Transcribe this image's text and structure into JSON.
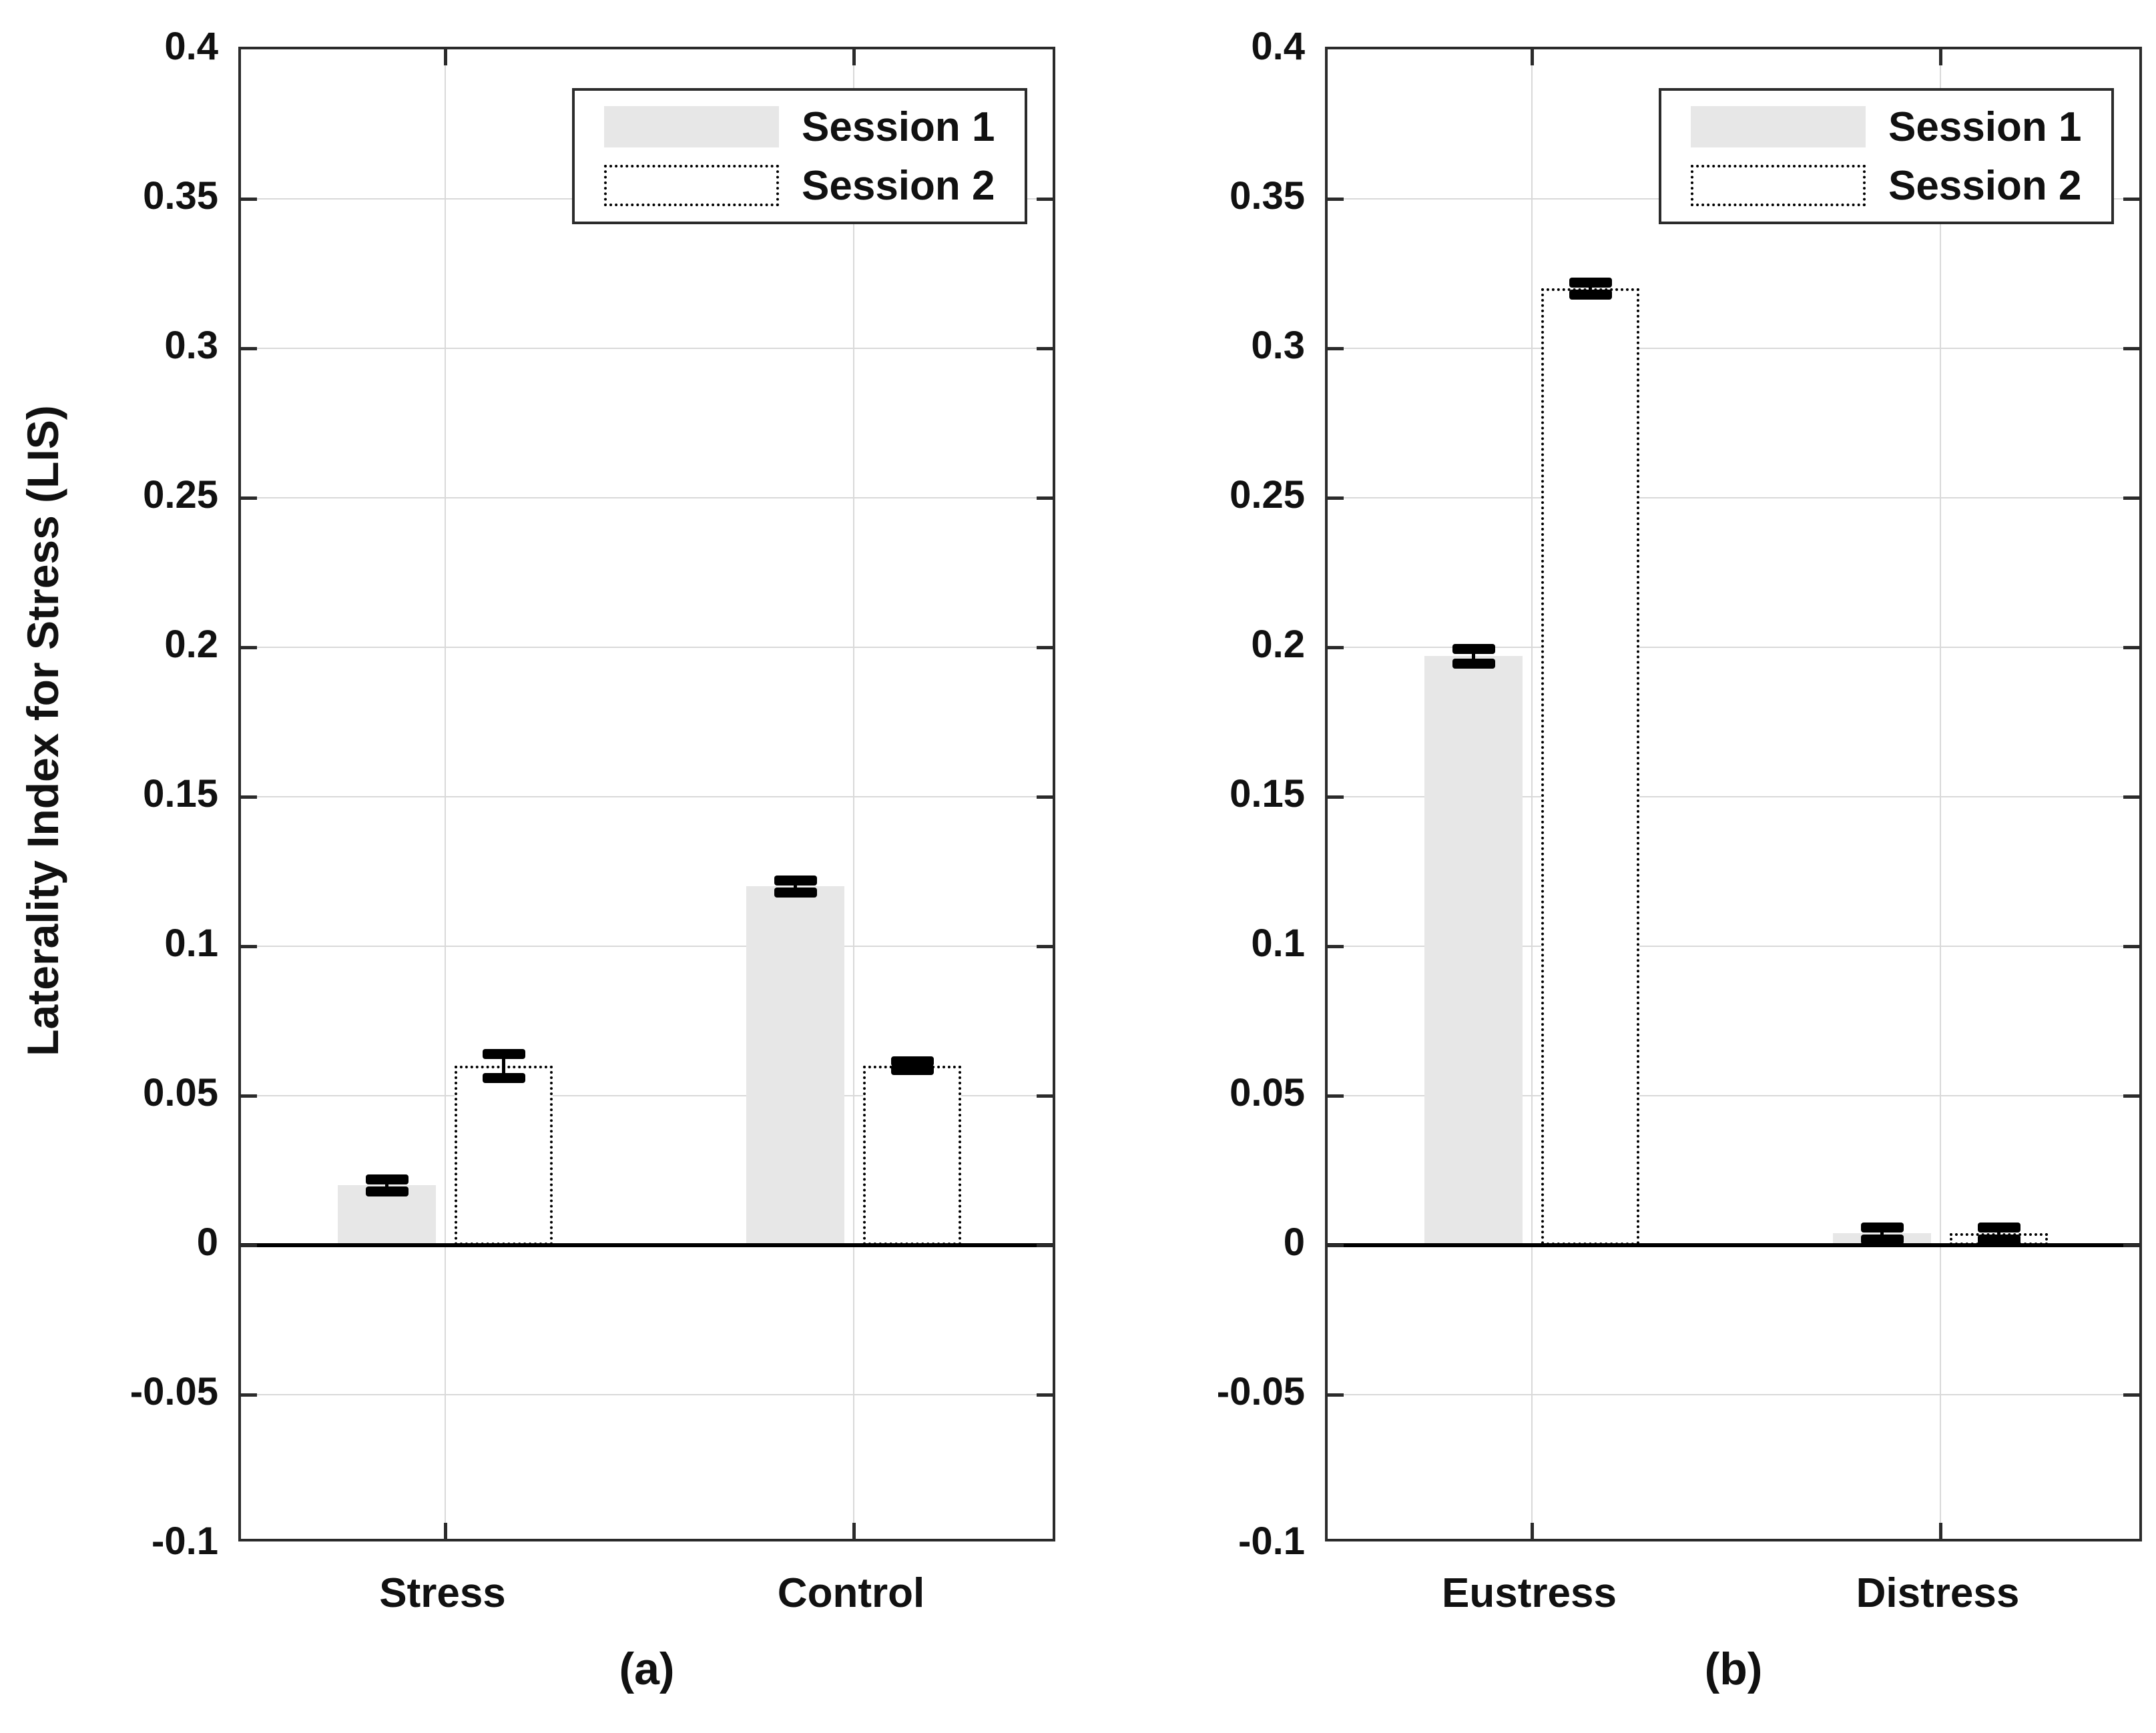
{
  "figure": {
    "ylabel": "Laterality Index for Stress (LIS)"
  },
  "chart_data": [
    {
      "type": "bar",
      "panel_label": "(a)",
      "categories": [
        "Stress",
        "Control"
      ],
      "series": [
        {
          "name": "Session 1",
          "style": "filled",
          "values": [
            0.02,
            0.12
          ],
          "errors": [
            0.002,
            0.002
          ]
        },
        {
          "name": "Session 2",
          "style": "dotted",
          "values": [
            0.06,
            0.06
          ],
          "errors": [
            0.004,
            0.0015
          ]
        }
      ],
      "ylabel": "Laterality Index for Stress (LIS)",
      "xlabel": "",
      "ylim": [
        -0.1,
        0.4
      ],
      "ytick_step": 0.05,
      "ytick_labels": [
        "0.4",
        "0.35",
        "0.3",
        "0.25",
        "0.2",
        "0.15",
        "0.1",
        "0.05",
        "0",
        "-0.05",
        "-0.1"
      ],
      "grid": true,
      "legend_position": "top-right"
    },
    {
      "type": "bar",
      "panel_label": "(b)",
      "categories": [
        "Eustress",
        "Distress"
      ],
      "series": [
        {
          "name": "Session 1",
          "style": "filled",
          "values": [
            0.197,
            0.004
          ],
          "errors": [
            0.0025,
            0.002
          ]
        },
        {
          "name": "Session 2",
          "style": "dotted",
          "values": [
            0.32,
            0.004
          ],
          "errors": [
            0.002,
            0.002
          ]
        }
      ],
      "ylabel": "",
      "xlabel": "",
      "ylim": [
        -0.1,
        0.4
      ],
      "ytick_step": 0.05,
      "ytick_labels": [
        "0.4",
        "0.35",
        "0.3",
        "0.25",
        "0.2",
        "0.15",
        "0.1",
        "0.05",
        "0",
        "-0.05",
        "-0.1"
      ],
      "grid": true,
      "legend_position": "top-right"
    }
  ],
  "colors": {
    "background": "#ffffff",
    "axis": "#2b2b2b",
    "grid": "#d9d9d9",
    "text": "#111111",
    "session1_fill": "#e7e7e7",
    "session2_border": "#000000",
    "zero_line": "#000000",
    "error_bar": "#000000"
  }
}
